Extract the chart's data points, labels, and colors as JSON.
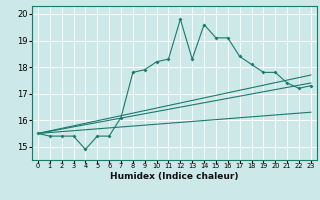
{
  "title": "",
  "xlabel": "Humidex (Indice chaleur)",
  "ylabel": "",
  "bg_color": "#cce8e8",
  "line_color": "#1a7a6e",
  "grid_color": "#ffffff",
  "xlim": [
    -0.5,
    23.5
  ],
  "ylim": [
    14.5,
    20.3
  ],
  "yticks": [
    15,
    16,
    17,
    18,
    19,
    20
  ],
  "xticks": [
    0,
    1,
    2,
    3,
    4,
    5,
    6,
    7,
    8,
    9,
    10,
    11,
    12,
    13,
    14,
    15,
    16,
    17,
    18,
    19,
    20,
    21,
    22,
    23
  ],
  "series1": {
    "x": [
      0,
      1,
      2,
      3,
      4,
      5,
      6,
      7,
      8,
      9,
      10,
      11,
      12,
      13,
      14,
      15,
      16,
      17,
      18,
      19,
      20,
      21,
      22,
      23
    ],
    "y": [
      15.5,
      15.4,
      15.4,
      15.4,
      14.9,
      15.4,
      15.4,
      16.1,
      17.8,
      17.9,
      18.2,
      18.3,
      19.8,
      18.3,
      19.6,
      19.1,
      19.1,
      18.4,
      18.1,
      17.8,
      17.8,
      17.4,
      17.2,
      17.3
    ]
  },
  "series2": {
    "x": [
      0,
      23
    ],
    "y": [
      15.5,
      17.4
    ]
  },
  "series3": {
    "x": [
      0,
      23
    ],
    "y": [
      15.5,
      17.7
    ]
  },
  "series4": {
    "x": [
      0,
      23
    ],
    "y": [
      15.5,
      16.3
    ]
  }
}
